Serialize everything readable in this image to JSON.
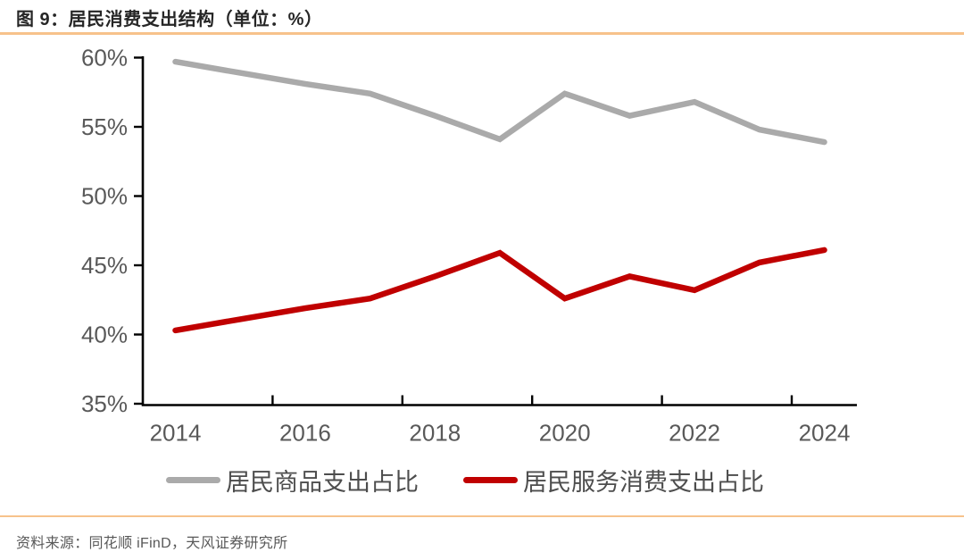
{
  "header": {
    "title": "图 9：居民消费支出结构（单位：%）"
  },
  "footer": {
    "source": "资料来源：同花顺 iFinD，天风证券研究所"
  },
  "colors": {
    "accent_rule": "#F7C28B",
    "goods_line": "#AAAAAA",
    "services_line": "#C00000",
    "axis": "#000000",
    "tick_label": "#595959",
    "title_text": "#262626",
    "legend_text": "#4d4d4d",
    "footer_text": "#595959"
  },
  "chart_data": {
    "type": "line",
    "title": "居民消费支出结构",
    "unit": "%",
    "x": [
      2014,
      2015,
      2016,
      2017,
      2018,
      2019,
      2020,
      2021,
      2022,
      2023,
      2024
    ],
    "x_tick_labels": [
      "2014",
      "2016",
      "2018",
      "2020",
      "2022",
      "2024"
    ],
    "y_tick_labels": [
      "60%",
      "55%",
      "50%",
      "45%",
      "40%",
      "35%"
    ],
    "y_ticks": [
      60,
      55,
      50,
      45,
      40,
      35
    ],
    "ylim": [
      35,
      60
    ],
    "grid": false,
    "legend_position": "bottom",
    "series": [
      {
        "name": "居民商品支出占比",
        "color": "#AAAAAA",
        "values": [
          59.7,
          58.9,
          58.1,
          57.4,
          55.8,
          54.1,
          57.4,
          55.8,
          56.8,
          54.8,
          53.9
        ]
      },
      {
        "name": "居民服务消费支出占比",
        "color": "#C00000",
        "values": [
          40.3,
          41.1,
          41.9,
          42.6,
          44.2,
          45.9,
          42.6,
          44.2,
          43.2,
          45.2,
          46.1
        ]
      }
    ]
  }
}
